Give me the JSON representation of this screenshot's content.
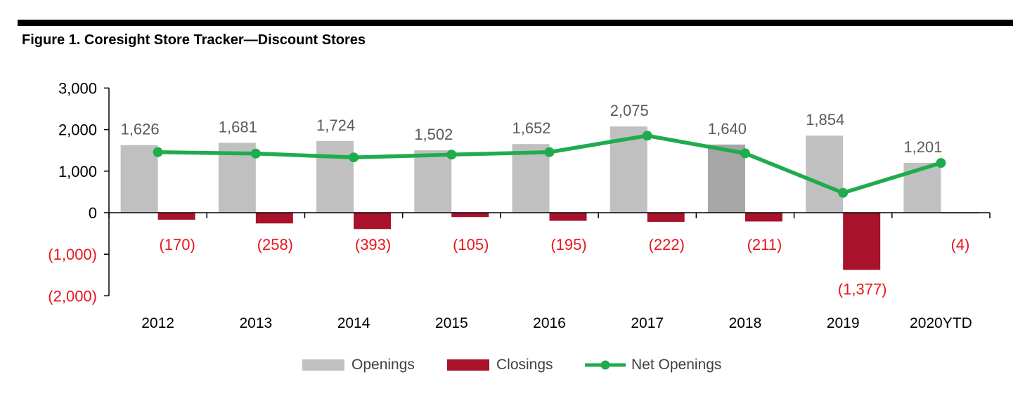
{
  "figure": {
    "title": "Figure 1. Coresight Store Tracker—Discount Stores"
  },
  "chart_data": {
    "type": "bar",
    "categories": [
      "2012",
      "2013",
      "2014",
      "2015",
      "2016",
      "2017",
      "2018",
      "2019",
      "2020YTD"
    ],
    "series": [
      {
        "name": "Openings",
        "type": "bar",
        "color": "#c0c0c0",
        "highlight_color": "#a6a6a6",
        "highlight_category": "2018",
        "values": [
          1626,
          1681,
          1724,
          1502,
          1652,
          2075,
          1640,
          1854,
          1201
        ],
        "labels": [
          "1,626",
          "1,681",
          "1,724",
          "1,502",
          "1,652",
          "2,075",
          "1,640",
          "1,854",
          "1,201"
        ]
      },
      {
        "name": "Closings",
        "type": "bar",
        "color": "#a8122a",
        "values": [
          -170,
          -258,
          -393,
          -105,
          -195,
          -222,
          -211,
          -1377,
          -4
        ],
        "labels": [
          "(170)",
          "(258)",
          "(393)",
          "(105)",
          "(195)",
          "(222)",
          "(211)",
          "(1,377)",
          "(4)"
        ]
      },
      {
        "name": "Net Openings",
        "type": "line",
        "color": "#1fac4c",
        "values": [
          1456,
          1423,
          1331,
          1397,
          1457,
          1853,
          1429,
          477,
          1197
        ]
      }
    ],
    "y_ticks": [
      3000,
      2000,
      1000,
      0,
      -1000,
      -2000
    ],
    "y_tick_labels": [
      "3,000",
      "2,000",
      "1,000",
      "0",
      "(1,000)",
      "(2,000)"
    ],
    "ylim": [
      -2000,
      3000
    ],
    "negative_label_color": "#e8161d",
    "positive_label_color": "#595959",
    "grid": false,
    "legend_position": "bottom",
    "xlabel": "",
    "ylabel": ""
  },
  "legend": {
    "items": [
      {
        "label": "Openings"
      },
      {
        "label": "Closings"
      },
      {
        "label": "Net Openings"
      }
    ]
  }
}
